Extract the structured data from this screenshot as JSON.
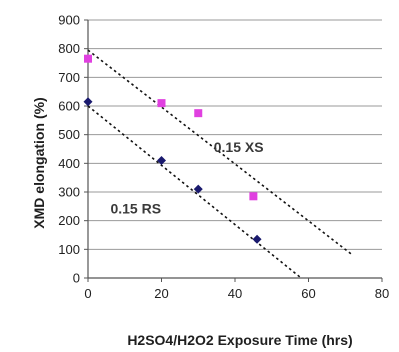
{
  "chart_data": {
    "type": "scatter",
    "title": "",
    "xlabel": "H2SO4/H2O2 Exposure Time (hrs)",
    "ylabel": "XMD elongation (%)",
    "xlim": [
      0,
      80
    ],
    "ylim": [
      0,
      900
    ],
    "xticks": [
      "0",
      "20",
      "40",
      "60",
      "80"
    ],
    "yticks": [
      "0",
      "100",
      "200",
      "300",
      "400",
      "500",
      "600",
      "700",
      "800",
      "900"
    ],
    "grid": "horizontal",
    "legend": "none",
    "series": [
      {
        "name": "0.15 XS",
        "color": "#e040e0",
        "marker": "square",
        "x": [
          0,
          20,
          30,
          45
        ],
        "y": [
          765,
          610,
          575,
          285
        ],
        "trendline": {
          "x": [
            0,
            72
          ],
          "y": [
            795,
            80
          ]
        }
      },
      {
        "name": "0.15 RS",
        "color": "#1a1a6e",
        "marker": "diamond",
        "x": [
          0,
          20,
          30,
          46
        ],
        "y": [
          615,
          410,
          310,
          135
        ],
        "trendline": {
          "x": [
            0,
            58
          ],
          "y": [
            600,
            0
          ]
        }
      }
    ]
  }
}
